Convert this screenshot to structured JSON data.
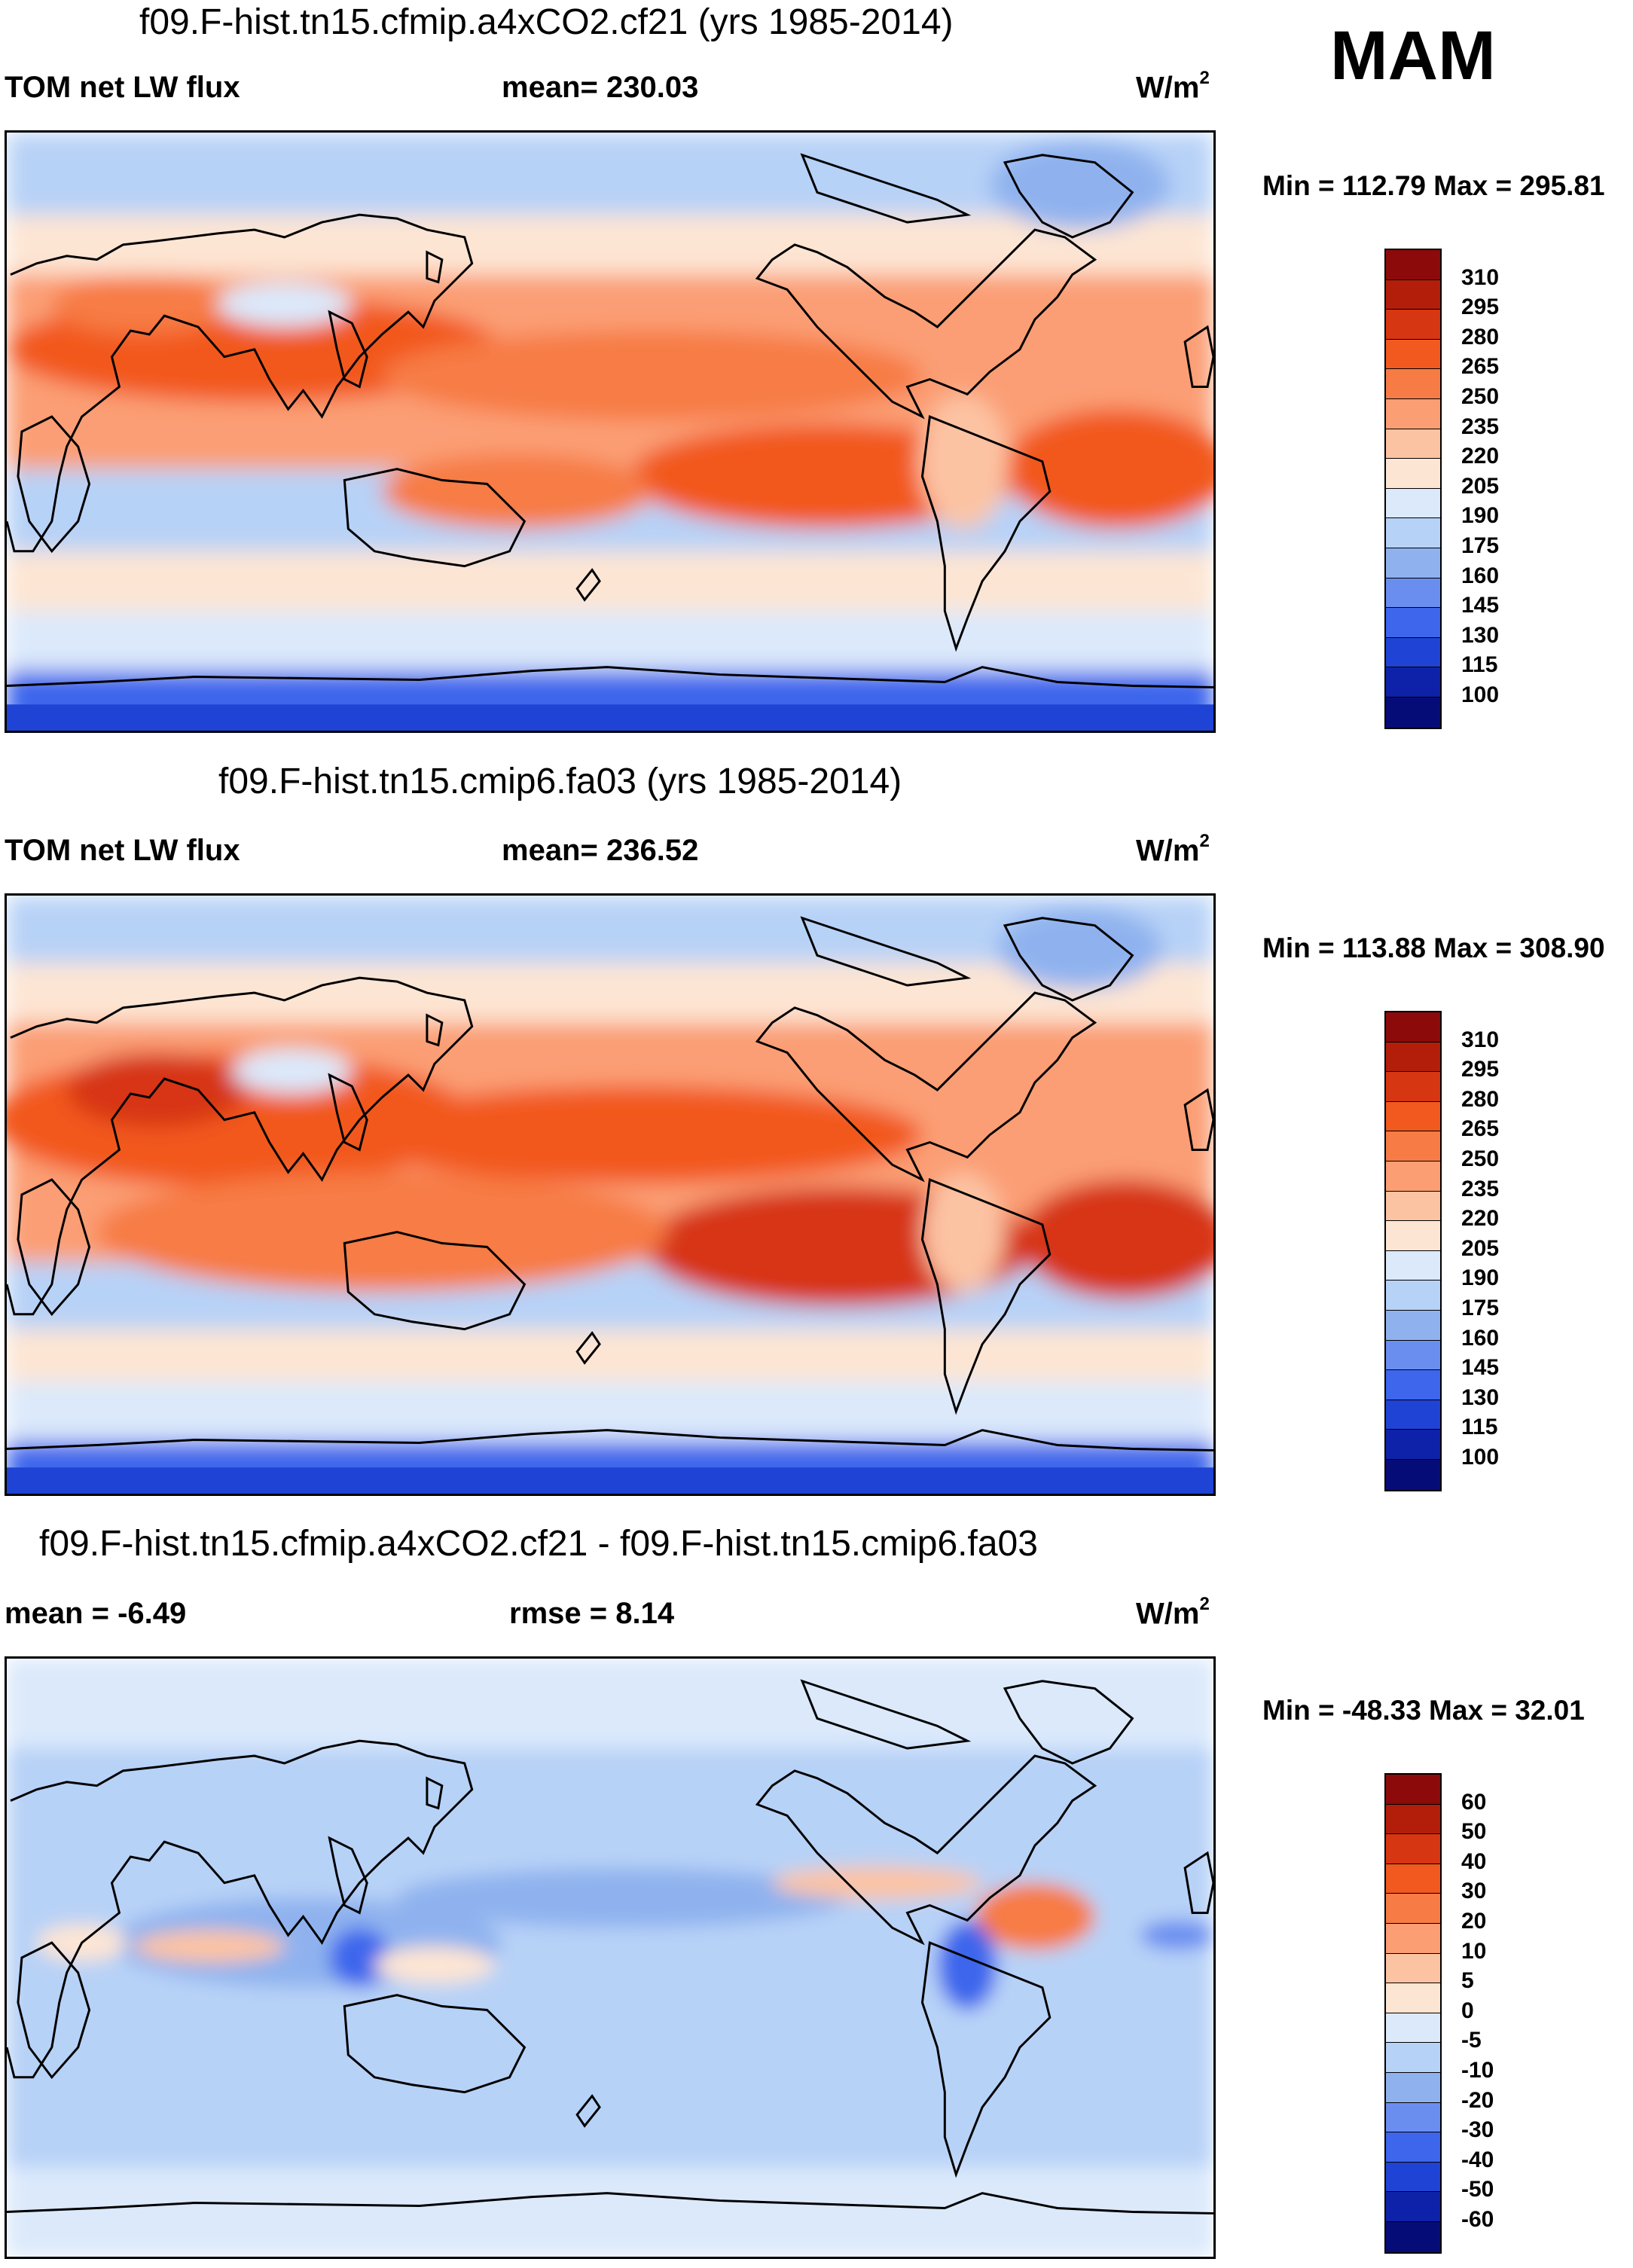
{
  "season": "MAM",
  "panels": [
    {
      "title": "f09.F-hist.tn15.cfmip.a4xCO2.cf21 (yrs 1985-2014)",
      "left_label": "TOM net LW flux",
      "center_label": "mean= 230.03",
      "units": "W/m",
      "units_sup": "2",
      "minmax": "Min = 112.79 Max = 295.81",
      "colorbar": {
        "labels": [
          "310",
          "295",
          "280",
          "265",
          "250",
          "235",
          "220",
          "205",
          "190",
          "175",
          "160",
          "145",
          "130",
          "115",
          "100"
        ],
        "colors": [
          "#8c0a0a",
          "#b31e0a",
          "#d73612",
          "#f2591f",
          "#f77b45",
          "#fb9e74",
          "#fcc3a3",
          "#fde5d3",
          "#dbe9fb",
          "#b7d2f7",
          "#8fb2ef",
          "#6a8ef0",
          "#3d66ec",
          "#1f43d4",
          "#0d22a8",
          "#060c77"
        ]
      }
    },
    {
      "title": "f09.F-hist.tn15.cmip6.fa03 (yrs 1985-2014)",
      "left_label": "TOM net LW flux",
      "center_label": "mean= 236.52",
      "units": "W/m",
      "units_sup": "2",
      "minmax": "Min = 113.88 Max = 308.90",
      "colorbar": {
        "labels": [
          "310",
          "295",
          "280",
          "265",
          "250",
          "235",
          "220",
          "205",
          "190",
          "175",
          "160",
          "145",
          "130",
          "115",
          "100"
        ],
        "colors": [
          "#8c0a0a",
          "#b31e0a",
          "#d73612",
          "#f2591f",
          "#f77b45",
          "#fb9e74",
          "#fcc3a3",
          "#fde5d3",
          "#dbe9fb",
          "#b7d2f7",
          "#8fb2ef",
          "#6a8ef0",
          "#3d66ec",
          "#1f43d4",
          "#0d22a8",
          "#060c77"
        ]
      }
    },
    {
      "title": "f09.F-hist.tn15.cfmip.a4xCO2.cf21 - f09.F-hist.tn15.cmip6.fa03",
      "left_label": "mean =  -6.49",
      "center_label": "rmse =   8.14",
      "units": "W/m",
      "units_sup": "2",
      "minmax": "Min = -48.33 Max =  32.01",
      "colorbar": {
        "labels": [
          "60",
          "50",
          "40",
          "30",
          "20",
          "10",
          "5",
          "0",
          "-5",
          "-10",
          "-20",
          "-30",
          "-40",
          "-50",
          "-60"
        ],
        "colors": [
          "#8c0a0a",
          "#b31e0a",
          "#d73612",
          "#f2591f",
          "#f77b45",
          "#fb9e74",
          "#fcc3a3",
          "#fde5d3",
          "#dbe9fb",
          "#b7d2f7",
          "#8fb2ef",
          "#6a8ef0",
          "#3d66ec",
          "#1f43d4",
          "#0d22a8",
          "#060c77"
        ]
      }
    }
  ]
}
